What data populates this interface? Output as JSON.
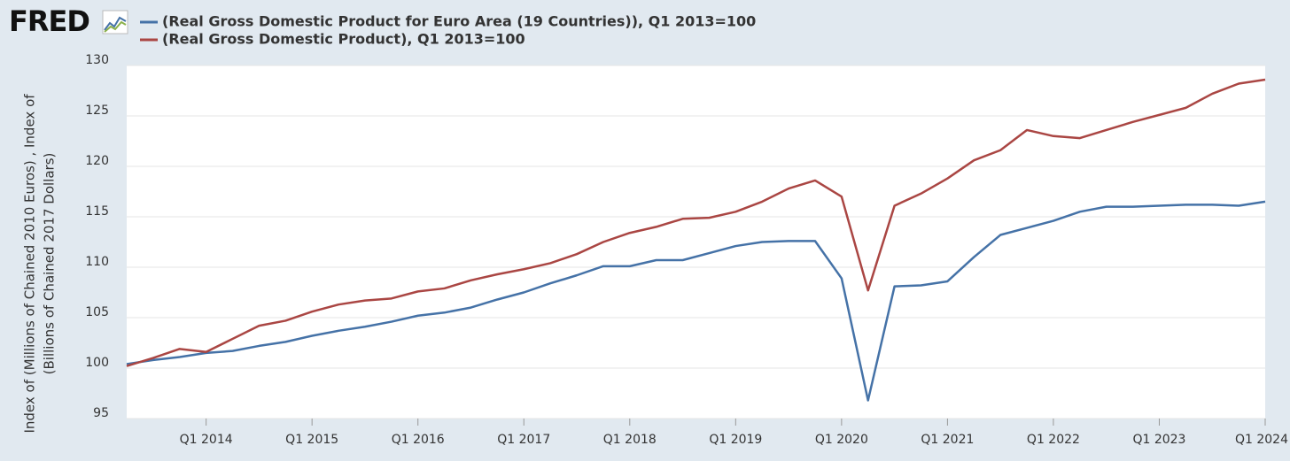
{
  "chart_data": {
    "type": "line",
    "logo": "FRED",
    "y_label": [
      "Index of (Millions of Chained 2010 Euros) , Index of",
      "(Billions of Chained 2017 Dollars)"
    ],
    "categories": [
      null,
      null,
      null,
      "Q1 2014",
      null,
      null,
      null,
      "Q1 2015",
      null,
      null,
      null,
      "Q1 2016",
      null,
      null,
      null,
      "Q1 2017",
      null,
      null,
      null,
      "Q1 2018",
      null,
      null,
      null,
      "Q1 2019",
      null,
      null,
      null,
      "Q1 2020",
      null,
      null,
      null,
      "Q1 2021",
      null,
      null,
      null,
      "Q1 2022",
      null,
      null,
      null,
      "Q1 2023",
      null,
      null,
      null,
      "Q1 2024"
    ],
    "series": [
      {
        "name": "(Real Gross Domestic Product for Euro Area (19 Countries)), Q1 2013=100",
        "color": "#4572a7",
        "values": [
          100.4,
          100.8,
          101.1,
          101.5,
          101.7,
          102.2,
          102.6,
          103.2,
          103.7,
          104.1,
          104.6,
          105.2,
          105.5,
          106.0,
          106.8,
          107.5,
          108.4,
          109.2,
          110.1,
          110.1,
          110.7,
          110.7,
          111.4,
          112.1,
          112.5,
          112.6,
          112.6,
          108.9,
          96.8,
          108.1,
          108.2,
          108.6,
          111.0,
          113.2,
          113.9,
          114.6,
          115.5,
          116.0,
          116.0,
          116.1,
          116.2,
          116.2,
          116.1,
          116.5
        ]
      },
      {
        "name": "(Real Gross Domestic Product), Q1 2013=100",
        "color": "#aa4643",
        "values": [
          100.2,
          101.0,
          101.9,
          101.6,
          102.9,
          104.2,
          104.7,
          105.6,
          106.3,
          106.7,
          106.9,
          107.6,
          107.9,
          108.7,
          109.3,
          109.8,
          110.4,
          111.3,
          112.5,
          113.4,
          114.0,
          114.8,
          114.9,
          115.5,
          116.5,
          117.8,
          118.6,
          117.0,
          107.7,
          116.1,
          117.3,
          118.8,
          120.6,
          121.6,
          123.6,
          123.0,
          122.8,
          123.6,
          124.4,
          125.1,
          125.8,
          127.2,
          128.2,
          128.6
        ]
      }
    ],
    "ylim": [
      95,
      130
    ],
    "yticks": [
      95,
      100,
      105,
      110,
      115,
      120,
      125,
      130
    ],
    "grid": true
  }
}
